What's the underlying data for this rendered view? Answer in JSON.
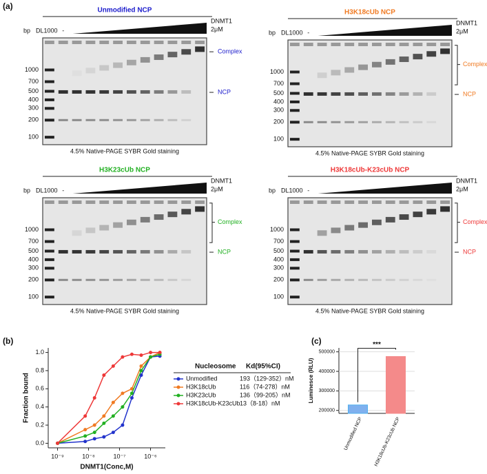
{
  "panel_labels": [
    "(a)",
    "(b)",
    "(c)"
  ],
  "gels": [
    {
      "title": "Unmodified NCP",
      "color": "#1c1ccc",
      "bp": "bp",
      "ladder": "DL1000",
      "control": "-",
      "titrant": "DNMT1",
      "conc": "2μM",
      "markers": [
        "1000",
        "700",
        "500",
        "400",
        "300",
        "200",
        "100"
      ],
      "complex": "Complex",
      "ncp": "NCP",
      "caption": "4.5% Native-PAGE SYBR Gold staining"
    },
    {
      "title": "H3K18cUb NCP",
      "color": "#f07a22",
      "bp": "bp",
      "ladder": "DL1000",
      "control": "-",
      "titrant": "DNMT1",
      "conc": "2μM",
      "markers": [
        "1000",
        "700",
        "500",
        "400",
        "300",
        "200",
        "100"
      ],
      "complex": "Complex",
      "ncp": "NCP",
      "caption": "4.5% Native-PAGE SYBR Gold staining"
    },
    {
      "title": "H3K23cUb NCP",
      "color": "#22b022",
      "bp": "bp",
      "ladder": "DL1000",
      "control": "-",
      "titrant": "DNMT1",
      "conc": "2μM",
      "markers": [
        "1000",
        "700",
        "500",
        "400",
        "300",
        "200",
        "100"
      ],
      "complex": "Complex",
      "ncp": "NCP",
      "caption": "4.5% Native-PAGE SYBR Gold staining"
    },
    {
      "title": "H3K18cUb-K23cUb NCP",
      "color": "#ee3838",
      "bp": "bp",
      "ladder": "DL1000",
      "control": "-",
      "titrant": "DNMT1",
      "conc": "2μM",
      "markers": [
        "1000",
        "700",
        "500",
        "400",
        "300",
        "200",
        "100"
      ],
      "complex": "Complex",
      "ncp": "NCP",
      "caption": "4.5% Native-PAGE SYBR Gold staining"
    }
  ],
  "chart_data": [
    {
      "type": "line",
      "xlabel": "DNMT1(Conc,M)",
      "ylabel": "Fraction bound",
      "log_x": true,
      "x": [
        1e-09,
        7.8e-09,
        1.56e-08,
        3.13e-08,
        6.25e-08,
        1.25e-07,
        2.5e-07,
        5e-07,
        1e-06,
        2e-06
      ],
      "xlim": [
        5e-10,
        3e-06
      ],
      "xticks": [
        {
          "value": 1e-09,
          "label": "10⁻⁹"
        },
        {
          "value": 1e-08,
          "label": "10⁻⁸"
        },
        {
          "value": 1e-07,
          "label": "10⁻⁷"
        },
        {
          "value": 1e-06,
          "label": "10⁻⁶"
        }
      ],
      "ylim": [
        -0.05,
        1.05
      ],
      "yticks": [
        {
          "value": 0,
          "label": "0.0"
        },
        0.2,
        0.4,
        0.6,
        0.8,
        {
          "value": 1,
          "label": "1.0"
        }
      ],
      "legend_headers": [
        "Nucleosome",
        "Kd(95%CI)"
      ],
      "series": [
        {
          "name": "Unmodified",
          "color": "#2233cc",
          "kd": "193（129-352）nM",
          "values": [
            0.0,
            0.02,
            0.05,
            0.07,
            0.12,
            0.2,
            0.5,
            0.75,
            0.95,
            0.96
          ]
        },
        {
          "name": "H3K18cUb",
          "color": "#f07a22",
          "kd": "116（74-278）nM",
          "values": [
            0.0,
            0.15,
            0.2,
            0.3,
            0.45,
            0.55,
            0.6,
            0.85,
            0.95,
            1.0
          ]
        },
        {
          "name": "H3K23cUb",
          "color": "#22b022",
          "kd": "136（99-205）nM",
          "values": [
            0.0,
            0.08,
            0.12,
            0.22,
            0.3,
            0.4,
            0.55,
            0.8,
            0.95,
            0.98
          ]
        },
        {
          "name": "H3K18cUb-K23cUb",
          "color": "#ee3838",
          "kd": "13（8-18）nM",
          "values": [
            0.0,
            0.3,
            0.5,
            0.75,
            0.85,
            0.95,
            0.98,
            0.97,
            1.0,
            1.0
          ]
        }
      ]
    },
    {
      "type": "bar",
      "ylabel": "Luminesce (RLU)",
      "significance": "***",
      "categories": [
        "Unmodified NCP",
        "H3K18cUb-K23cUb NCP"
      ],
      "values": [
        228000,
        476000
      ],
      "colors": [
        "#7fb0ee",
        "#f48a8a"
      ],
      "ylim": [
        185000,
        520000
      ],
      "yticks": [
        200000,
        300000,
        400000,
        500000
      ]
    }
  ]
}
